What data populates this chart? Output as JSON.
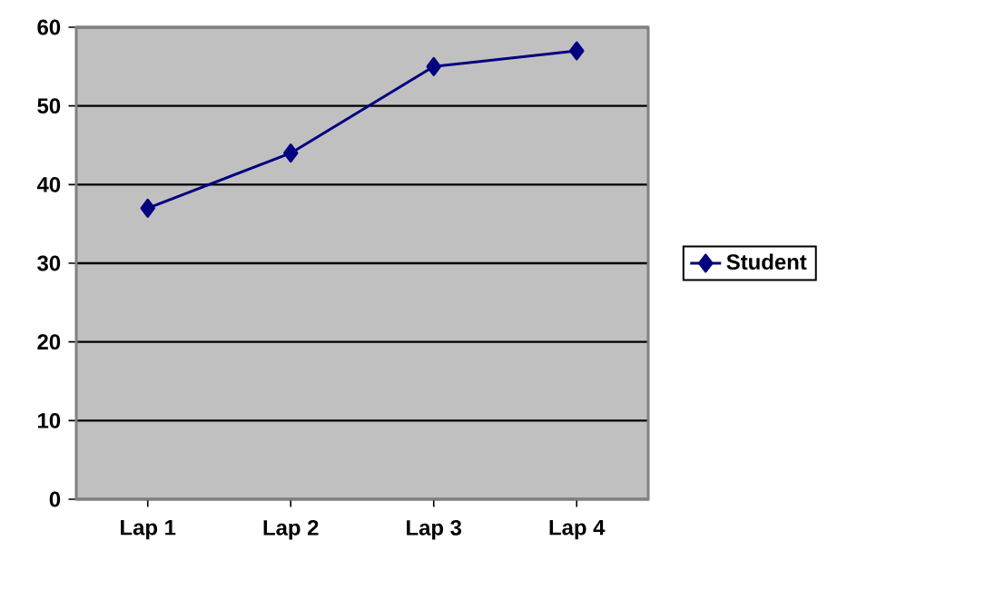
{
  "chart_data": {
    "type": "line",
    "categories": [
      "Lap 1",
      "Lap 2",
      "Lap 3",
      "Lap 4"
    ],
    "series": [
      {
        "name": "Student",
        "color": "#000080",
        "values": [
          37,
          44,
          55,
          57
        ]
      }
    ],
    "ylim": [
      0,
      60
    ],
    "yticks": [
      0,
      10,
      20,
      30,
      40,
      50,
      60
    ],
    "grid": "y",
    "legend": "right",
    "marker": "diamond",
    "line_style": "solid"
  }
}
